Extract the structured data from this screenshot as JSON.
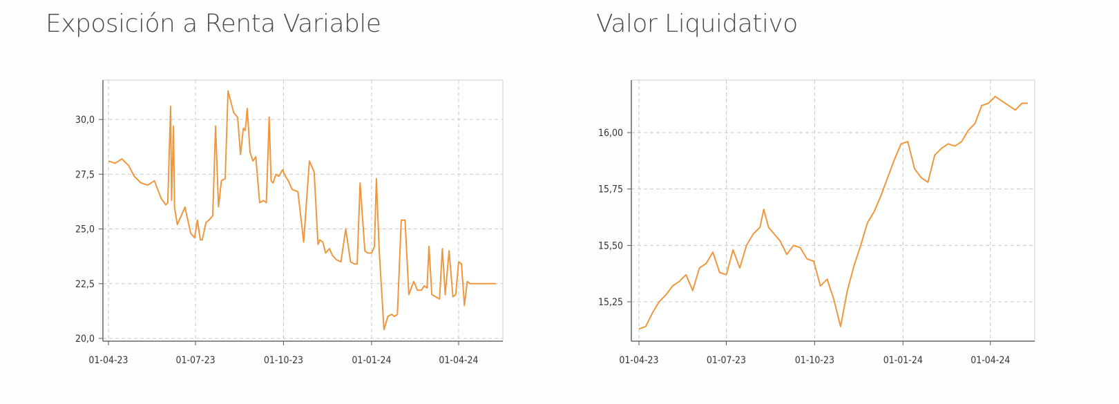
{
  "chart_data": [
    {
      "type": "line",
      "title": "Exposición a Renta Variable",
      "xlabel": "",
      "ylabel": "",
      "x_ticks": [
        "01-04-23",
        "01-07-23",
        "01-10-23",
        "01-01-24",
        "01-04-24"
      ],
      "y_ticks": [
        "20,0",
        "22,5",
        "25,0",
        "27,5",
        "30,0"
      ],
      "ylim": [
        20.0,
        31.5
      ],
      "xlim": [
        "2023-04-01",
        "2024-05-10"
      ],
      "grid": true,
      "color": "#f0963c",
      "series": [
        {
          "x": [
            "2023-04-01",
            "2023-04-08",
            "2023-04-15",
            "2023-04-22",
            "2023-04-28",
            "2023-05-05",
            "2023-05-12",
            "2023-05-19",
            "2023-05-26",
            "2023-05-31",
            "2023-06-02",
            "2023-06-05",
            "2023-06-06",
            "2023-06-08",
            "2023-06-09",
            "2023-06-12",
            "2023-06-16",
            "2023-06-20",
            "2023-06-26",
            "2023-06-30",
            "2023-07-03",
            "2023-07-06",
            "2023-07-08",
            "2023-07-12",
            "2023-07-15",
            "2023-07-19",
            "2023-07-22",
            "2023-07-25",
            "2023-07-28",
            "2023-08-01",
            "2023-08-04",
            "2023-08-07",
            "2023-08-10",
            "2023-08-14",
            "2023-08-17",
            "2023-08-20",
            "2023-08-22",
            "2023-08-24",
            "2023-08-27",
            "2023-08-30",
            "2023-09-02",
            "2023-09-06",
            "2023-09-10",
            "2023-09-13",
            "2023-09-16",
            "2023-09-18",
            "2023-09-20",
            "2023-09-23",
            "2023-09-26",
            "2023-09-30",
            "2023-10-03",
            "2023-10-06",
            "2023-10-10",
            "2023-10-16",
            "2023-10-22",
            "2023-10-28",
            "2023-11-02",
            "2023-11-06",
            "2023-11-08",
            "2023-11-11",
            "2023-11-14",
            "2023-11-18",
            "2023-11-21",
            "2023-11-25",
            "2023-11-30",
            "2023-12-05",
            "2023-12-10",
            "2023-12-14",
            "2023-12-17",
            "2023-12-20",
            "2023-12-25",
            "2023-12-28",
            "2024-01-01",
            "2024-01-04",
            "2024-01-06",
            "2024-01-09",
            "2024-01-14",
            "2024-01-18",
            "2024-01-22",
            "2024-01-25",
            "2024-01-28",
            "2024-02-01",
            "2024-02-05",
            "2024-02-09",
            "2024-02-14",
            "2024-02-18",
            "2024-02-22",
            "2024-02-25",
            "2024-02-28",
            "2024-03-01",
            "2024-03-04",
            "2024-03-08",
            "2024-03-12",
            "2024-03-15",
            "2024-03-18",
            "2024-03-22",
            "2024-03-26",
            "2024-03-29",
            "2024-04-01",
            "2024-04-04",
            "2024-04-07",
            "2024-04-10",
            "2024-04-13",
            "2024-04-16",
            "2024-04-19",
            "2024-04-22",
            "2024-04-25",
            "2024-04-28",
            "2024-05-01",
            "2024-05-04",
            "2024-05-07",
            "2024-05-10"
          ],
          "y": [
            28.1,
            28.0,
            28.2,
            27.9,
            27.4,
            27.1,
            27.0,
            27.2,
            26.4,
            26.1,
            26.2,
            30.6,
            26.3,
            29.7,
            26.0,
            25.2,
            25.6,
            26.0,
            24.8,
            24.6,
            25.4,
            24.5,
            24.5,
            25.3,
            25.4,
            25.6,
            29.7,
            26.0,
            27.2,
            27.3,
            31.3,
            30.8,
            30.3,
            30.1,
            28.4,
            29.6,
            29.5,
            30.5,
            28.5,
            28.1,
            28.3,
            26.2,
            26.3,
            26.2,
            30.1,
            27.2,
            27.1,
            27.5,
            27.4,
            27.7,
            27.4,
            27.2,
            26.8,
            26.7,
            24.4,
            28.1,
            27.6,
            24.3,
            24.5,
            24.4,
            23.9,
            24.1,
            23.8,
            23.6,
            23.5,
            25.0,
            23.5,
            23.4,
            23.4,
            27.1,
            24.0,
            23.9,
            23.9,
            24.2,
            27.3,
            24.0,
            20.4,
            21.0,
            21.1,
            21.0,
            21.1,
            25.4,
            25.4,
            22.0,
            22.6,
            22.2,
            22.2,
            22.4,
            22.3,
            24.2,
            22.0,
            21.9,
            21.8,
            24.1,
            22.0,
            24.0,
            21.9,
            22.0,
            23.5,
            23.4,
            21.5,
            22.6,
            22.5,
            22.5,
            22.5,
            22.5,
            22.5,
            22.5,
            22.5,
            22.5,
            22.5,
            22.5
          ]
        }
      ]
    },
    {
      "type": "line",
      "title": "Valor Liquidativo",
      "xlabel": "",
      "ylabel": "",
      "x_ticks": [
        "01-04-23",
        "01-07-23",
        "01-10-23",
        "01-01-24",
        "01-04-24"
      ],
      "y_ticks": [
        "15,25",
        "15,50",
        "15,75",
        "16,00"
      ],
      "ylim": [
        15.09,
        16.23
      ],
      "xlim": [
        "2023-04-01",
        "2024-05-10"
      ],
      "grid": true,
      "color": "#f0963c",
      "series": [
        {
          "x": [
            "2023-04-01",
            "2023-04-08",
            "2023-04-15",
            "2023-04-22",
            "2023-04-29",
            "2023-05-06",
            "2023-05-13",
            "2023-05-20",
            "2023-05-27",
            "2023-06-03",
            "2023-06-10",
            "2023-06-17",
            "2023-06-24",
            "2023-07-01",
            "2023-07-08",
            "2023-07-15",
            "2023-07-22",
            "2023-07-29",
            "2023-08-05",
            "2023-08-09",
            "2023-08-14",
            "2023-08-20",
            "2023-08-26",
            "2023-09-02",
            "2023-09-09",
            "2023-09-16",
            "2023-09-23",
            "2023-09-30",
            "2023-10-07",
            "2023-10-14",
            "2023-10-21",
            "2023-10-28",
            "2023-11-04",
            "2023-11-11",
            "2023-11-18",
            "2023-11-25",
            "2023-12-02",
            "2023-12-09",
            "2023-12-16",
            "2023-12-23",
            "2023-12-30",
            "2024-01-06",
            "2024-01-13",
            "2024-01-20",
            "2024-01-27",
            "2024-02-03",
            "2024-02-10",
            "2024-02-17",
            "2024-02-24",
            "2024-03-02",
            "2024-03-09",
            "2024-03-16",
            "2024-03-23",
            "2024-03-30",
            "2024-04-06",
            "2024-04-13",
            "2024-04-20",
            "2024-04-27",
            "2024-05-04",
            "2024-05-10"
          ],
          "y": [
            15.13,
            15.14,
            15.2,
            15.25,
            15.28,
            15.32,
            15.34,
            15.37,
            15.3,
            15.4,
            15.42,
            15.47,
            15.38,
            15.37,
            15.48,
            15.4,
            15.5,
            15.55,
            15.58,
            15.66,
            15.58,
            15.55,
            15.52,
            15.46,
            15.5,
            15.49,
            15.44,
            15.43,
            15.32,
            15.35,
            15.26,
            15.14,
            15.3,
            15.41,
            15.5,
            15.6,
            15.65,
            15.72,
            15.8,
            15.88,
            15.95,
            15.96,
            15.84,
            15.8,
            15.78,
            15.9,
            15.93,
            15.95,
            15.94,
            15.96,
            16.01,
            16.04,
            16.12,
            16.13,
            16.16,
            16.14,
            16.12,
            16.1,
            16.13,
            16.13
          ]
        }
      ]
    }
  ]
}
